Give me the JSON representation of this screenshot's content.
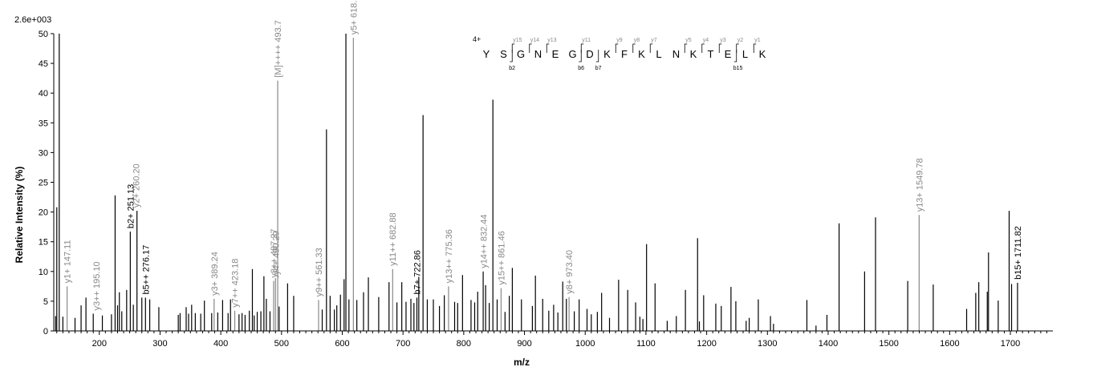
{
  "chart_data": {
    "type": "bar",
    "scale_label": "2.6e+003",
    "xlabel": "m/z",
    "ylabel": "Relative   Intensity (%)",
    "xlim": [
      125,
      1770
    ],
    "ylim": [
      0,
      50
    ],
    "x_ticks": [
      200,
      300,
      400,
      500,
      600,
      700,
      800,
      900,
      1000,
      1100,
      1200,
      1300,
      1400,
      1500,
      1600,
      1700
    ],
    "y_ticks": [
      0,
      5,
      10,
      15,
      20,
      25,
      30,
      35,
      40,
      45,
      50
    ],
    "colors": {
      "unassigned": "#000000",
      "y_ion": "#888888",
      "b_ion": "#000000"
    },
    "peaks": [
      [
        128,
        2.5
      ],
      [
        130,
        20.8
      ],
      [
        134,
        50
      ],
      [
        140,
        2.4
      ],
      [
        147,
        7.5
      ],
      [
        160,
        2.2
      ],
      [
        170,
        4.3
      ],
      [
        178,
        5.6
      ],
      [
        190,
        2.9
      ],
      [
        205,
        2.6
      ],
      [
        220,
        2.8
      ],
      [
        226,
        22.8
      ],
      [
        230,
        4.3
      ],
      [
        233,
        6.5
      ],
      [
        237,
        3.3
      ],
      [
        245,
        6.9
      ],
      [
        251,
        16.7
      ],
      [
        256,
        4.4
      ],
      [
        262,
        20.2
      ],
      [
        270,
        5.6
      ],
      [
        276,
        5.6
      ],
      [
        283,
        5.3
      ],
      [
        298,
        4.0
      ],
      [
        330,
        2.7
      ],
      [
        333,
        3.0
      ],
      [
        343,
        4.0
      ],
      [
        347,
        2.9
      ],
      [
        352,
        4.4
      ],
      [
        358,
        3.0
      ],
      [
        367,
        2.9
      ],
      [
        373,
        5.1
      ],
      [
        385,
        3.0
      ],
      [
        389,
        5.4
      ],
      [
        395,
        3.1
      ],
      [
        403,
        5.2
      ],
      [
        412,
        3.0
      ],
      [
        416,
        5.3
      ],
      [
        423,
        3.4
      ],
      [
        430,
        2.8
      ],
      [
        435,
        3.0
      ],
      [
        440,
        2.7
      ],
      [
        447,
        3.4
      ],
      [
        452,
        10.4
      ],
      [
        455,
        2.6
      ],
      [
        460,
        3.2
      ],
      [
        466,
        3.3
      ],
      [
        471,
        9.2
      ],
      [
        475,
        5.4
      ],
      [
        481,
        3.3
      ],
      [
        487,
        8.4
      ],
      [
        490,
        8.9
      ],
      [
        493.7,
        42.1
      ],
      [
        496,
        4.1
      ],
      [
        510,
        8.0
      ],
      [
        520,
        5.9
      ],
      [
        561,
        5.2
      ],
      [
        567,
        3.6
      ],
      [
        574,
        33.9
      ],
      [
        580,
        5.9
      ],
      [
        587,
        3.6
      ],
      [
        591,
        4.3
      ],
      [
        597,
        6.1
      ],
      [
        603,
        8.7
      ],
      [
        606,
        50
      ],
      [
        611,
        5.3
      ],
      [
        618.3,
        49.3
      ],
      [
        624,
        5.2
      ],
      [
        635,
        6.5
      ],
      [
        643,
        9.0
      ],
      [
        660,
        5.7
      ],
      [
        677,
        8.2
      ],
      [
        683,
        10.4
      ],
      [
        690,
        4.8
      ],
      [
        698,
        8.2
      ],
      [
        705,
        4.9
      ],
      [
        713,
        5.4
      ],
      [
        718,
        4.7
      ],
      [
        722.9,
        5.6
      ],
      [
        726,
        9.1
      ],
      [
        733,
        36.3
      ],
      [
        740,
        5.3
      ],
      [
        750,
        5.3
      ],
      [
        760,
        4.2
      ],
      [
        768,
        6.0
      ],
      [
        775,
        7.5
      ],
      [
        785,
        4.9
      ],
      [
        790,
        4.7
      ],
      [
        798,
        9.4
      ],
      [
        812,
        5.2
      ],
      [
        818,
        4.8
      ],
      [
        823,
        6.6
      ],
      [
        832,
        10.0
      ],
      [
        836,
        7.7
      ],
      [
        842,
        4.7
      ],
      [
        848,
        38.9
      ],
      [
        855,
        5.3
      ],
      [
        861.5,
        7.2
      ],
      [
        868,
        3.2
      ],
      [
        875,
        5.9
      ],
      [
        880,
        10.6
      ],
      [
        895,
        5.3
      ],
      [
        913,
        4.2
      ],
      [
        918,
        9.3
      ],
      [
        930,
        5.4
      ],
      [
        940,
        3.4
      ],
      [
        948,
        4.4
      ],
      [
        955,
        3.1
      ],
      [
        963,
        8.3
      ],
      [
        969,
        5.4
      ],
      [
        973.4,
        5.7
      ],
      [
        982,
        3.3
      ],
      [
        990,
        5.3
      ],
      [
        1003,
        3.7
      ],
      [
        1010,
        2.8
      ],
      [
        1020,
        3.2
      ],
      [
        1027,
        6.4
      ],
      [
        1040,
        2.2
      ],
      [
        1055,
        8.6
      ],
      [
        1070,
        6.9
      ],
      [
        1083,
        4.8
      ],
      [
        1090,
        2.4
      ],
      [
        1095,
        2.0
      ],
      [
        1101,
        14.6
      ],
      [
        1115,
        8.0
      ],
      [
        1135,
        1.7
      ],
      [
        1150,
        2.5
      ],
      [
        1165,
        6.9
      ],
      [
        1185,
        15.6
      ],
      [
        1188,
        1.6
      ],
      [
        1195,
        6.0
      ],
      [
        1215,
        4.6
      ],
      [
        1224,
        4.2
      ],
      [
        1240,
        7.4
      ],
      [
        1248,
        5.0
      ],
      [
        1265,
        1.7
      ],
      [
        1270,
        2.2
      ],
      [
        1285,
        5.3
      ],
      [
        1305,
        2.5
      ],
      [
        1310,
        1.2
      ],
      [
        1365,
        5.2
      ],
      [
        1380,
        0.9
      ],
      [
        1398,
        2.7
      ],
      [
        1418,
        18.1
      ],
      [
        1460,
        10.0
      ],
      [
        1478,
        19.1
      ],
      [
        1531,
        8.4
      ],
      [
        1549.8,
        19.5
      ],
      [
        1573,
        7.8
      ],
      [
        1628,
        3.7
      ],
      [
        1643,
        6.4
      ],
      [
        1648,
        8.2
      ],
      [
        1662,
        6.6
      ],
      [
        1664,
        13.2
      ],
      [
        1680,
        5.1
      ],
      [
        1698,
        20.2
      ],
      [
        1702,
        7.9
      ],
      [
        1711.8,
        8.1
      ]
    ],
    "annotations": [
      {
        "text": "y1+ 147.11",
        "x": 147.11,
        "series": "y"
      },
      {
        "text": "y3++ 195.10",
        "x": 195.1,
        "series": "y"
      },
      {
        "text": "b2+ 251.13",
        "x": 251.13,
        "series": "b"
      },
      {
        "text": "y2+ 260.20",
        "x": 260.2,
        "series": "y"
      },
      {
        "text": "b5++ 276.17",
        "x": 276.17,
        "series": "b"
      },
      {
        "text": "y3+ 389.24",
        "x": 389.24,
        "series": "y"
      },
      {
        "text": "y7++ 423.18",
        "x": 423.18,
        "series": "y"
      },
      {
        "text": "y8++ 487.27",
        "x": 487.27,
        "series": "y"
      },
      {
        "text": "y4+ 490.29",
        "x": 490.29,
        "series": "y"
      },
      {
        "text": "[M]++++ 493.7",
        "x": 493.7,
        "series": "y"
      },
      {
        "text": "y9++ 561.33",
        "x": 561.33,
        "series": "y"
      },
      {
        "text": "y5+ 618.3",
        "x": 618.3,
        "series": "y"
      },
      {
        "text": "y11++ 682.88",
        "x": 682.88,
        "series": "y"
      },
      {
        "text": "b7+ 722.86",
        "x": 722.86,
        "series": "b"
      },
      {
        "text": "y13++ 775.36",
        "x": 775.36,
        "series": "y"
      },
      {
        "text": "y14++ 832.44",
        "x": 832.44,
        "series": "y"
      },
      {
        "text": "y15++ 861.46",
        "x": 861.46,
        "series": "y"
      },
      {
        "text": "y8+ 973.40",
        "x": 973.4,
        "series": "y"
      },
      {
        "text": "y13+ 1549.78",
        "x": 1549.78,
        "series": "y"
      },
      {
        "text": "b15+ 1711.82",
        "x": 1711.82,
        "series": "b"
      }
    ],
    "sequence": {
      "charge": "4+",
      "residues": [
        "Y",
        "S",
        "G",
        "N",
        "E",
        "G",
        "D",
        "K",
        "F",
        "K",
        "L",
        "N",
        "K",
        "T",
        "E",
        "L",
        "K"
      ],
      "y_marks": [
        {
          "after": 2,
          "label": "y15"
        },
        {
          "after": 3,
          "label": "y14"
        },
        {
          "after": 4,
          "label": "y13"
        },
        {
          "after": 6,
          "label": "y11"
        },
        {
          "after": 8,
          "label": "y9"
        },
        {
          "after": 9,
          "label": "y8"
        },
        {
          "after": 10,
          "label": "y7"
        },
        {
          "after": 12,
          "label": "y5"
        },
        {
          "after": 13,
          "label": "y4"
        },
        {
          "after": 14,
          "label": "y3"
        },
        {
          "after": 15,
          "label": "y2"
        },
        {
          "after": 16,
          "label": "y1"
        }
      ],
      "b_marks": [
        {
          "after": 2,
          "label": "b2"
        },
        {
          "after": 6,
          "label": "b6"
        },
        {
          "after": 7,
          "label": "b7"
        },
        {
          "after": 15,
          "label": "b15"
        }
      ]
    }
  }
}
